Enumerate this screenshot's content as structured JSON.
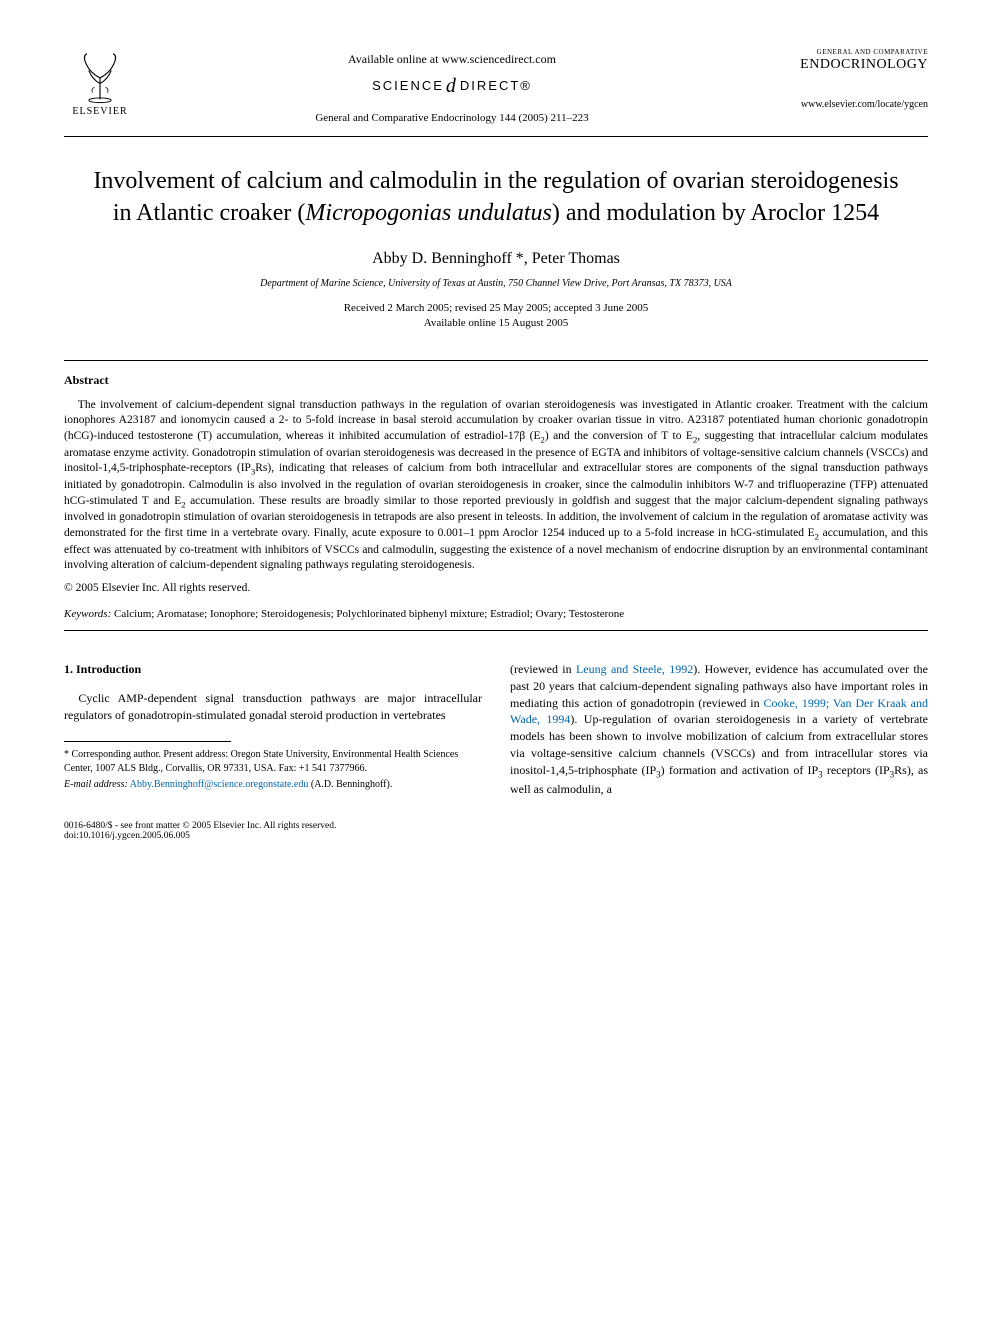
{
  "header": {
    "publisher": "ELSEVIER",
    "availability": "Available online at www.sciencedirect.com",
    "sd_logo_left": "SCIENCE",
    "sd_logo_right": "DIRECT®",
    "citation": "General and Comparative Endocrinology 144 (2005) 211–223",
    "journal_supertitle": "GENERAL AND COMPARATIVE",
    "journal_title": "ENDOCRINOLOGY",
    "journal_url": "www.elsevier.com/locate/ygcen"
  },
  "article": {
    "title_html": "Involvement of calcium and calmodulin in the regulation of ovarian steroidogenesis in Atlantic croaker (<em>Micropogonias undulatus</em>) and modulation by Aroclor 1254",
    "authors": "Abby D. Benninghoff *, Peter Thomas",
    "affiliation": "Department of Marine Science, University of Texas at Austin, 750 Channel View Drive, Port Aransas, TX 78373, USA",
    "received": "Received 2 March 2005; revised 25 May 2005; accepted 3 June 2005",
    "available": "Available online 15 August 2005"
  },
  "abstract": {
    "heading": "Abstract",
    "text_html": "The involvement of calcium-dependent signal transduction pathways in the regulation of ovarian steroidogenesis was investigated in Atlantic croaker. Treatment with the calcium ionophores A23187 and ionomycin caused a 2- to 5-fold increase in basal steroid accumulation by croaker ovarian tissue in vitro. A23187 potentiated human chorionic gonadotropin (hCG)-induced testosterone (T) accumulation, whereas it inhibited accumulation of estradiol-17β (E<sub>2</sub>) and the conversion of T to E<sub>2</sub>, suggesting that intracellular calcium modulates aromatase enzyme activity. Gonadotropin stimulation of ovarian steroidogenesis was decreased in the presence of EGTA and inhibitors of voltage-sensitive calcium channels (VSCCs) and inositol-1,4,5-triphosphate-receptors (IP<sub>3</sub>Rs), indicating that releases of calcium from both intracellular and extracellular stores are components of the signal transduction pathways initiated by gonadotropin. Calmodulin is also involved in the regulation of ovarian steroidogenesis in croaker, since the calmodulin inhibitors W-7 and trifluoperazine (TFP) attenuated hCG-stimulated T and E<sub>2</sub> accumulation. These results are broadly similar to those reported previously in goldfish and suggest that the major calcium-dependent signaling pathways involved in gonadotropin stimulation of ovarian steroidogenesis in tetrapods are also present in teleosts. In addition, the involvement of calcium in the regulation of aromatase activity was demonstrated for the first time in a vertebrate ovary. Finally, acute exposure to 0.001–1 ppm Aroclor 1254 induced up to a 5-fold increase in hCG-stimulated E<sub>2</sub> accumulation, and this effect was attenuated by co-treatment with inhibitors of VSCCs and calmodulin, suggesting the existence of a novel mechanism of endocrine disruption by an environmental contaminant involving alteration of calcium-dependent signaling pathways regulating steroidogenesis.",
    "copyright": "© 2005 Elsevier Inc. All rights reserved."
  },
  "keywords": {
    "label": "Keywords:",
    "text": " Calcium; Aromatase; Ionophore; Steroidogenesis; Polychlorinated biphenyl mixture; Estradiol; Ovary; Testosterone"
  },
  "section1": {
    "heading": "1. Introduction",
    "col1_html": "Cyclic AMP-dependent signal transduction pathways are major intracellular regulators of gonadotropin-stimulated gonadal steroid production in vertebrates",
    "col2_html": "(reviewed in <span class=\"ref-link\">Leung and Steele, 1992</span>). However, evidence has accumulated over the past 20 years that calcium-dependent signaling pathways also have important roles in mediating this action of gonadotropin (reviewed in <span class=\"ref-link\">Cooke, 1999; Van Der Kraak and Wade, 1994</span>). Up-regulation of ovarian steroidogenesis in a variety of vertebrate models has been shown to involve mobilization of calcium from extracellular stores via voltage-sensitive calcium channels (VSCCs) and from intracellular stores via inositol-1,4,5-triphosphate (IP<sub>3</sub>) formation and activation of IP<sub>3</sub> receptors (IP<sub>3</sub>Rs), as well as calmodulin, a"
  },
  "footnote": {
    "corr": "* Corresponding author. Present address: Oregon State University, Environmental Health Sciences Center, 1007 ALS Bldg., Corvallis, OR 97331, USA. Fax: +1 541 7377966.",
    "email_label": "E-mail address:",
    "email": "Abby.Benninghoff@science.oregonstate.edu",
    "email_tail": " (A.D. Benninghoff)."
  },
  "footer": {
    "left": "0016-6480/$ - see front matter © 2005 Elsevier Inc. All rights reserved.",
    "doi": "doi:10.1016/j.ygcen.2005.06.005"
  },
  "colors": {
    "text": "#000000",
    "link": "#0066aa",
    "background": "#ffffff"
  }
}
